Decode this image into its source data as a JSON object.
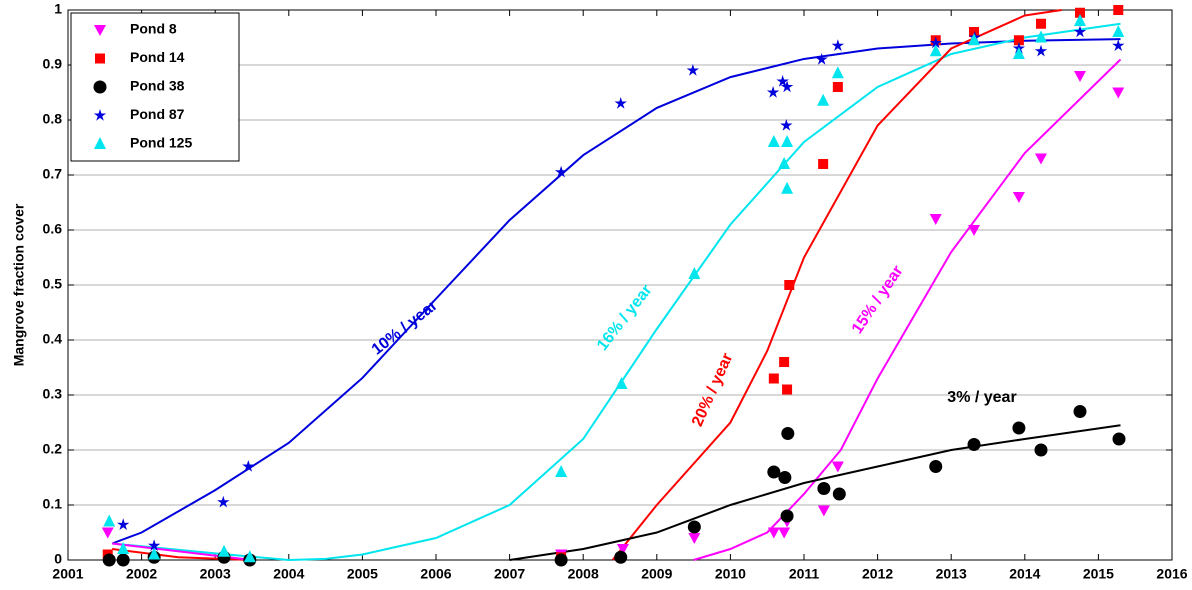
{
  "chart_data": {
    "type": "scatter",
    "ylabel": "Mangrove fraction cover",
    "xlim": [
      2001,
      2016
    ],
    "xticks": [
      2001,
      2002,
      2003,
      2004,
      2005,
      2006,
      2007,
      2008,
      2009,
      2010,
      2011,
      2012,
      2013,
      2014,
      2015,
      2016
    ],
    "ylim": [
      0,
      1
    ],
    "yticks": [
      0,
      0.1,
      0.2,
      0.3,
      0.4,
      0.5,
      0.6,
      0.7,
      0.8,
      0.9,
      1
    ],
    "grid": true,
    "legend": "upper left",
    "series": [
      {
        "name": "Pond 8",
        "color": "#ff00ff",
        "marker": "v",
        "x": [
          2001.54,
          2007.7,
          2008.54,
          2009.51,
          2010.59,
          2010.73,
          2010.77,
          2011.27,
          2011.46,
          2012.79,
          2013.31,
          2013.92,
          2014.22,
          2014.75,
          2015.27
        ],
        "values": [
          0.05,
          0.01,
          0.02,
          0.04,
          0.05,
          0.05,
          0.07,
          0.09,
          0.17,
          0.62,
          0.6,
          0.66,
          0.73,
          0.88,
          0.85
        ]
      },
      {
        "name": "Pond 14",
        "color": "#ff0000",
        "marker": "s",
        "x": [
          2001.54,
          2007.7,
          2010.59,
          2010.73,
          2010.77,
          2010.8,
          2011.26,
          2011.46,
          2012.79,
          2013.31,
          2013.92,
          2014.22,
          2014.75,
          2015.27
        ],
        "values": [
          0.01,
          0.005,
          0.33,
          0.36,
          0.31,
          0.5,
          0.72,
          0.86,
          0.945,
          0.96,
          0.945,
          0.975,
          0.995,
          1
        ]
      },
      {
        "name": "Pond 38",
        "color": "#000000",
        "marker": "o",
        "x": [
          2001.56,
          2001.75,
          2002.17,
          2003.12,
          2003.47,
          2007.7,
          2008.51,
          2009.51,
          2010.59,
          2010.74,
          2010.78,
          2010.77,
          2011.27,
          2011.48,
          2012.79,
          2013.31,
          2013.92,
          2014.22,
          2014.75,
          2015.28
        ],
        "values": [
          0,
          0,
          0.005,
          0.005,
          0,
          0,
          0.005,
          0.06,
          0.16,
          0.15,
          0.23,
          0.08,
          0.13,
          0.12,
          0.17,
          0.21,
          0.24,
          0.2,
          0.27,
          0.22
        ]
      },
      {
        "name": "Pond 87",
        "color": "#0000dd",
        "marker": "*",
        "x": [
          2001.75,
          2002.17,
          2003.11,
          2003.45,
          2007.7,
          2008.51,
          2009.49,
          2010.58,
          2010.71,
          2010.77,
          2010.76,
          2011.24,
          2011.46,
          2012.79,
          2013.32,
          2013.92,
          2014.22,
          2014.75,
          2015.27
        ],
        "values": [
          0.064,
          0.026,
          0.105,
          0.17,
          0.705,
          0.83,
          0.89,
          0.85,
          0.87,
          0.86,
          0.79,
          0.91,
          0.935,
          0.94,
          0.95,
          0.93,
          0.925,
          0.96,
          0.935
        ]
      },
      {
        "name": "Pond 125",
        "color": "#00e5ee",
        "marker": "^",
        "x": [
          2001.56,
          2001.75,
          2002.17,
          2003.12,
          2003.47,
          2007.7,
          2008.52,
          2009.51,
          2010.59,
          2010.73,
          2010.77,
          2010.77,
          2011.26,
          2011.46,
          2012.79,
          2013.31,
          2013.92,
          2014.22,
          2014.75,
          2015.27
        ],
        "values": [
          0.07,
          0.02,
          0.01,
          0.015,
          0.005,
          0.16,
          0.32,
          0.52,
          0.76,
          0.72,
          0.76,
          0.675,
          0.835,
          0.885,
          0.925,
          0.945,
          0.92,
          0.95,
          0.98,
          0.96
        ]
      }
    ],
    "fits": [
      {
        "label": "10% / year",
        "color": "#0000dd",
        "x": [
          2001.6,
          2002,
          2003,
          2004,
          2005,
          2006,
          2007,
          2008,
          2009,
          2010,
          2011,
          2012,
          2013,
          2014,
          2015.3
        ],
        "values": [
          0.03,
          0.05,
          0.127,
          0.213,
          0.331,
          0.475,
          0.618,
          0.736,
          0.822,
          0.878,
          0.911,
          0.93,
          0.939,
          0.944,
          0.947
        ]
      },
      {
        "label": "16% / year",
        "color": "#00e5ee",
        "x": [
          2001.6,
          2002,
          2003,
          2004,
          2004.5,
          2005,
          2006,
          2007,
          2008,
          2009,
          2010,
          2011,
          2012,
          2013,
          2014,
          2015.3
        ],
        "values": [
          0.03,
          0.025,
          0.012,
          0,
          0.002,
          0.01,
          0.04,
          0.1,
          0.22,
          0.42,
          0.61,
          0.76,
          0.86,
          0.92,
          0.95,
          0.975
        ]
      },
      {
        "label": "20% / year",
        "color": "#ff0000",
        "x": [
          2001.6,
          2002.5,
          2003.5,
          2006,
          2008.4,
          2009,
          2010,
          2010.5,
          2011,
          2012,
          2013,
          2014,
          2014.5
        ],
        "values": [
          0.02,
          0.005,
          0,
          null,
          0,
          0.1,
          0.25,
          0.38,
          0.55,
          0.79,
          0.93,
          0.99,
          1
        ]
      },
      {
        "label": "15% / year",
        "color": "#ff00ff",
        "x": [
          2001.6,
          2003.5,
          2006,
          2009.5,
          2010,
          2010.5,
          2011,
          2011.5,
          2012,
          2013,
          2014,
          2015.3
        ],
        "values": [
          0.03,
          0,
          null,
          0,
          0.02,
          0.05,
          0.12,
          0.2,
          0.33,
          0.56,
          0.74,
          0.91
        ]
      },
      {
        "label": "3% / year",
        "color": "#000000",
        "x": [
          2007,
          2008,
          2009,
          2010,
          2011,
          2012,
          2013,
          2014,
          2015.3
        ],
        "values": [
          0,
          0.02,
          0.05,
          0.1,
          0.14,
          0.17,
          0.2,
          0.22,
          0.245
        ]
      }
    ]
  }
}
